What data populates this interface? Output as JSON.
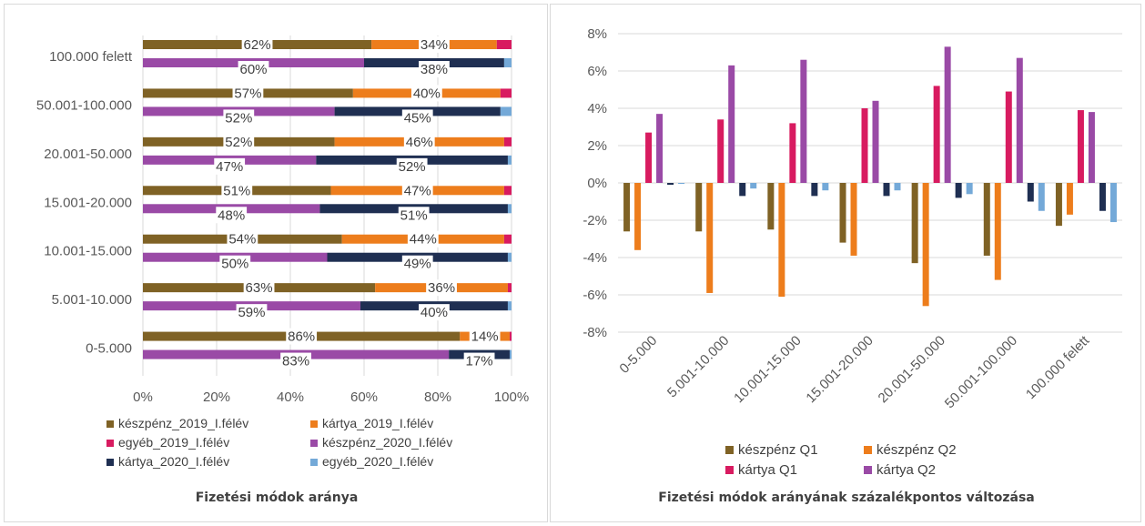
{
  "colors": {
    "keszpenz_2019": "#7f6225",
    "kartya_2019": "#ed7d1c",
    "egyeb_2019": "#d81b60",
    "keszpenz_2020": "#9a4aa6",
    "kartya_2020": "#1f2f52",
    "egyeb_2020": "#74a9d8",
    "keszpenz_q1": "#7f6225",
    "keszpenz_q2": "#ed7d1c",
    "kartya_q1": "#d81b60",
    "kartya_q2": "#9a4aa6",
    "grid": "#d9d9d9",
    "axis_text": "#595959"
  },
  "chart_data": [
    {
      "type": "bar",
      "orientation": "horizontal",
      "stacked": "percent",
      "title": "Fizetési módok aránya",
      "categories": [
        "100.000 felett",
        "50.001-100.000",
        "20.001-50.000",
        "15.001-20.000",
        "10.001-15.000",
        "5.001-10.000",
        "0-5.000"
      ],
      "x_ticks": [
        "0%",
        "20%",
        "40%",
        "60%",
        "80%",
        "100%"
      ],
      "xlim": [
        0,
        100
      ],
      "grid": true,
      "legend_position": "bottom",
      "series": [
        {
          "name": "készpénz_2019_I.félév",
          "color_key": "keszpenz_2019",
          "group": "2019",
          "values": [
            62,
            57,
            52,
            51,
            54,
            63,
            86
          ]
        },
        {
          "name": "kártya_2019_I.félév",
          "color_key": "kartya_2019",
          "group": "2019",
          "values": [
            34,
            40,
            46,
            47,
            44,
            36,
            13.5
          ]
        },
        {
          "name": "egyéb_2019_I.félév",
          "color_key": "egyeb_2019",
          "group": "2019",
          "values": [
            4,
            3,
            2,
            2,
            2,
            1,
            0.5
          ]
        },
        {
          "name": "készpénz_2020_I.félév",
          "color_key": "keszpenz_2020",
          "group": "2020",
          "values": [
            60,
            52,
            47,
            48,
            50,
            59,
            83
          ]
        },
        {
          "name": "kártya_2020_I.félév",
          "color_key": "kartya_2020",
          "group": "2020",
          "values": [
            38,
            45,
            52,
            51,
            49,
            40,
            16.5
          ]
        },
        {
          "name": "egyéb_2020_I.félév",
          "color_key": "egyeb_2020",
          "group": "2020",
          "values": [
            2,
            3,
            1,
            1,
            1,
            1,
            0.5
          ]
        }
      ],
      "data_labels": {
        "2019_cash": [
          "62%",
          "57%",
          "52%",
          "51%",
          "54%",
          "63%",
          "86%"
        ],
        "2019_card": [
          "34%",
          "40%",
          "46%",
          "47%",
          "44%",
          "36%",
          "14%"
        ],
        "2020_cash": [
          "60%",
          "52%",
          "47%",
          "48%",
          "50%",
          "59%",
          "83%"
        ],
        "2020_card": [
          "38%",
          "45%",
          "52%",
          "51%",
          "49%",
          "40%",
          "17%"
        ]
      }
    },
    {
      "type": "bar",
      "orientation": "vertical",
      "title": "Fizetési módok arányának százalékpontos változása",
      "categories": [
        "0-5.000",
        "5.001-10.000",
        "10.001-15.000",
        "15.001-20.000",
        "20.001-50.000",
        "50.001-100.000",
        "100.000 felett"
      ],
      "y_ticks": [
        "8%",
        "6%",
        "4%",
        "2%",
        "0%",
        "-2%",
        "-4%",
        "-6%",
        "-8%"
      ],
      "ylim": [
        -8,
        8
      ],
      "grid": true,
      "legend_position": "bottom",
      "series": [
        {
          "name": "készpénz Q1",
          "color_key": "keszpenz_q1",
          "in_legend": true,
          "values": [
            -2.6,
            -2.6,
            -2.5,
            -3.2,
            -4.3,
            -3.9,
            -2.3
          ]
        },
        {
          "name": "készpénz Q2",
          "color_key": "keszpenz_q2",
          "in_legend": true,
          "values": [
            -3.6,
            -5.9,
            -6.1,
            -3.9,
            -6.6,
            -5.2,
            -1.7
          ]
        },
        {
          "name": "kártya Q1",
          "color_key": "kartya_q1",
          "in_legend": true,
          "values": [
            2.7,
            3.4,
            3.2,
            4.0,
            5.2,
            4.9,
            3.9
          ]
        },
        {
          "name": "kártya Q2",
          "color_key": "kartya_q2",
          "in_legend": true,
          "values": [
            3.7,
            6.3,
            6.6,
            4.4,
            7.3,
            6.7,
            3.8
          ]
        },
        {
          "name": "",
          "color_key": "kartya_2020",
          "in_legend": false,
          "values": [
            -0.1,
            -0.7,
            -0.7,
            -0.7,
            -0.8,
            -1.0,
            -1.5
          ]
        },
        {
          "name": "",
          "color_key": "egyeb_2020",
          "in_legend": false,
          "values": [
            0,
            -0.3,
            -0.4,
            -0.4,
            -0.6,
            -1.5,
            -2.1
          ]
        }
      ]
    }
  ]
}
